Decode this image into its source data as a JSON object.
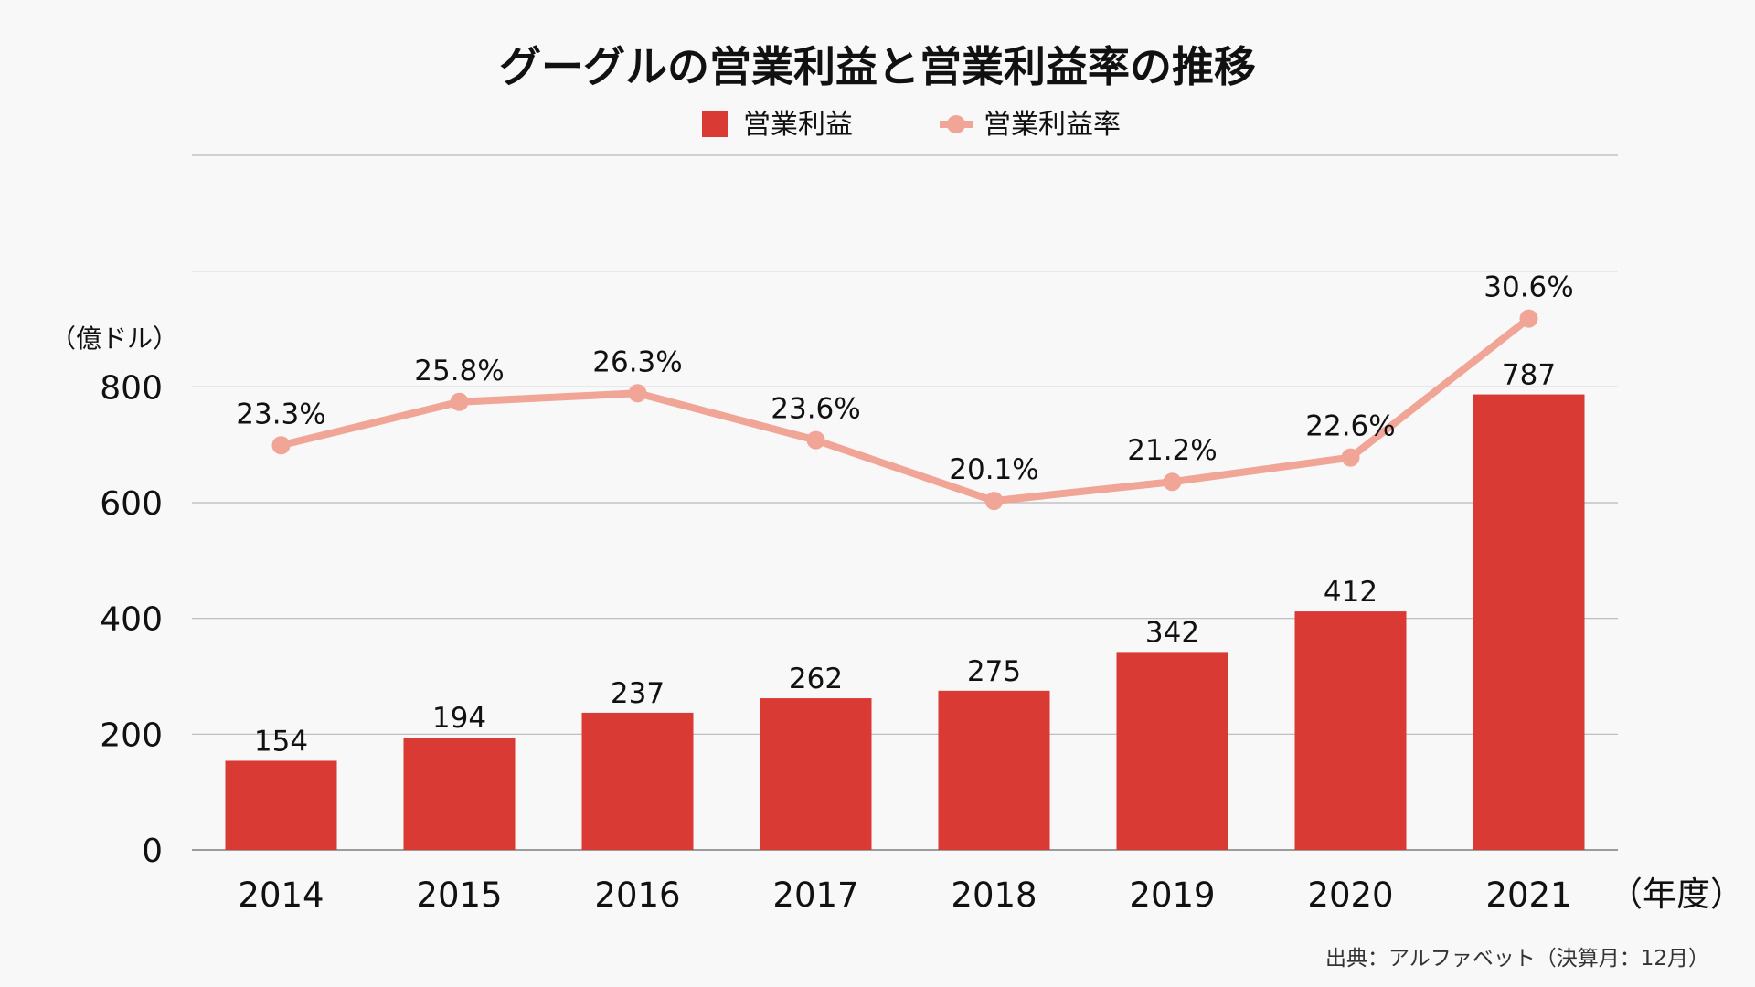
{
  "title": "グーグルの営業利益と営業利益率の推移",
  "legend": {
    "bar_label": "営業利益",
    "line_label": "営業利益率"
  },
  "y_unit_label": "（億ドル）",
  "x_unit_label": "（年度）",
  "source": "出典：アルファベット（決算月：12月）",
  "colors": {
    "bar": "#d93a34",
    "line": "#f0a596",
    "grid": "#b8b8b8",
    "background": "#f8f8f8"
  },
  "chart_data": {
    "type": "bar",
    "title": "グーグルの営業利益と営業利益率の推移",
    "categories": [
      "2014",
      "2015",
      "2016",
      "2017",
      "2018",
      "2019",
      "2020",
      "2021"
    ],
    "series": [
      {
        "name": "営業利益",
        "type": "bar",
        "axis": "left",
        "values": [
          154,
          194,
          237,
          262,
          275,
          342,
          412,
          787
        ],
        "labels": [
          "154",
          "194",
          "237",
          "262",
          "275",
          "342",
          "412",
          "787"
        ]
      },
      {
        "name": "営業利益率",
        "type": "line",
        "axis": "right-hidden",
        "values": [
          23.3,
          25.8,
          26.3,
          23.6,
          20.1,
          21.2,
          22.6,
          30.6
        ],
        "labels": [
          "23.3%",
          "25.8%",
          "26.3%",
          "23.6%",
          "20.1%",
          "21.2%",
          "22.6%",
          "30.6%"
        ]
      }
    ],
    "ylim": [
      0,
      1200
    ],
    "yticks": [
      0,
      200,
      400,
      600,
      800
    ],
    "ytick_labels": [
      "0",
      "200",
      "400",
      "600",
      "800"
    ],
    "y2lim": [
      0,
      40
    ],
    "grid": true,
    "legend_position": "top-center"
  }
}
